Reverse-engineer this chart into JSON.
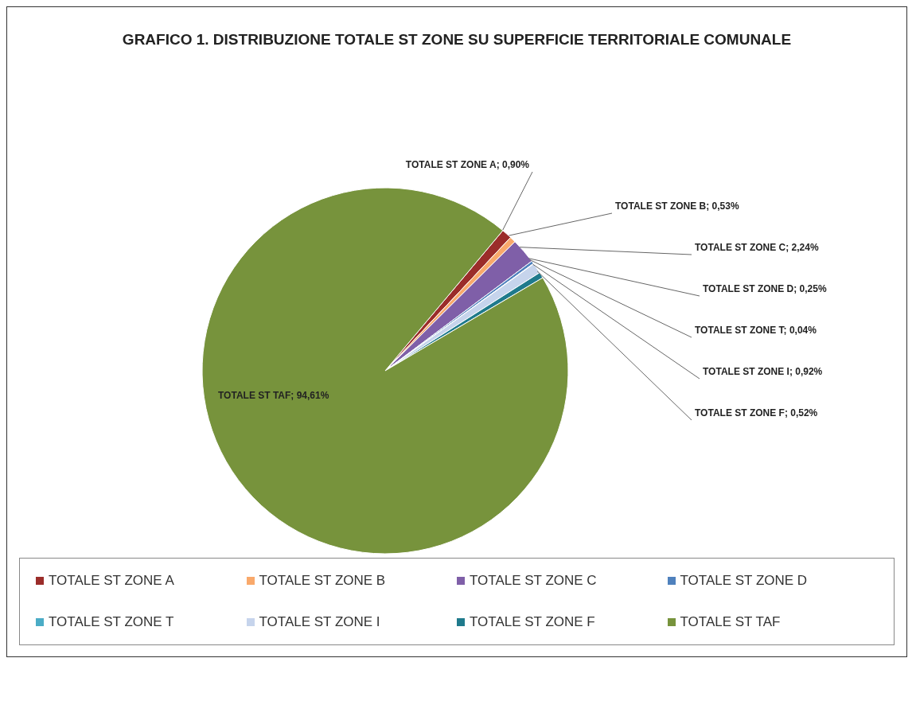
{
  "chart_data": {
    "type": "pie",
    "title": "GRAFICO 1.  DISTRIBUZIONE TOTALE ST ZONE SU SUPERFICIE TERRITORIALE COMUNALE",
    "categories": [
      "TOTALE ST ZONE A",
      "TOTALE ST ZONE B",
      "TOTALE ST ZONE C",
      "TOTALE ST ZONE D",
      "TOTALE ST ZONE T",
      "TOTALE ST ZONE I",
      "TOTALE ST ZONE F",
      "TOTALE ST TAF"
    ],
    "values": [
      0.9,
      0.53,
      2.24,
      0.25,
      0.04,
      0.92,
      0.52,
      94.61
    ],
    "value_labels": [
      "TOTALE ST ZONE A; 0,90%",
      "TOTALE ST ZONE B; 0,53%",
      "TOTALE ST ZONE C; 2,24%",
      "TOTALE ST ZONE D; 0,25%",
      "TOTALE ST ZONE T; 0,04%",
      "TOTALE ST ZONE I; 0,92%",
      "TOTALE ST ZONE F; 0,52%",
      "TOTALE ST TAF; 94,61%"
    ],
    "colors": [
      "#9b2d2a",
      "#f9a96b",
      "#7f5fa8",
      "#4f81bd",
      "#4bacc6",
      "#c6d4ec",
      "#1f7a8c",
      "#77933c"
    ],
    "legend": "bottom"
  }
}
